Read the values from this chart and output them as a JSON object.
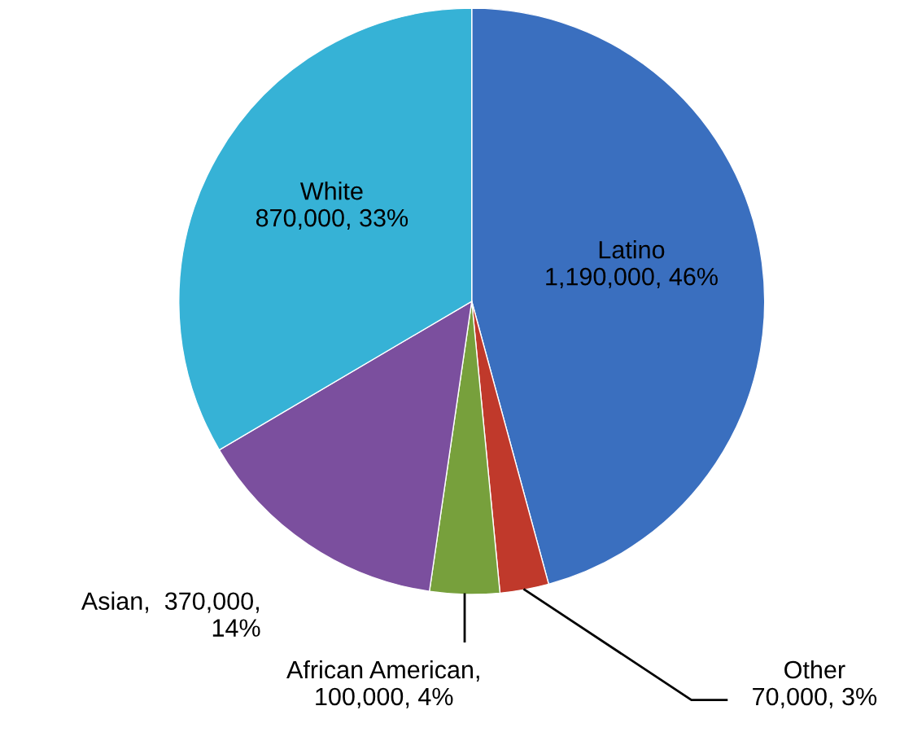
{
  "chart_data": {
    "type": "pie",
    "categories": [
      "Latino",
      "Other",
      "African American",
      "Asian",
      "White"
    ],
    "values": [
      1190000,
      70000,
      100000,
      370000,
      870000
    ],
    "value_labels": [
      "\n1,190,000, 46%",
      "\n70,000, 3%",
      ",\n100,000, 4%",
      ",  370,000,\n14%",
      "\n870,000, 33%"
    ],
    "colors": [
      "#3a6fbf",
      "#c0392b",
      "#77a03c",
      "#7b4f9e",
      "#36b2d6"
    ],
    "legend": false
  }
}
